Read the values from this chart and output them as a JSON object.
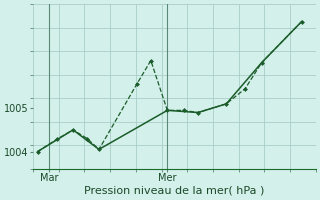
{
  "xlabel": "Pression niveau de la mer( hPa )",
  "background_color": "#d4f0ea",
  "grid_color": "#aacfc8",
  "line_color": "#1a5c2a",
  "vline_color": "#5a8878",
  "x_tick_labels": [
    "Mar",
    "Mer"
  ],
  "x_tick_positions": [
    0.5,
    5.5
  ],
  "yticks": [
    1004,
    1005
  ],
  "ylim": [
    1003.6,
    1007.4
  ],
  "xlim": [
    -0.2,
    11.8
  ],
  "num_xticks": 12,
  "num_yticks": 8,
  "series1_x": [
    0,
    0.8,
    1.5,
    2.1,
    2.6,
    4.2,
    4.8,
    5.5,
    6.2,
    6.8,
    8.0,
    8.8,
    9.5,
    11.2
  ],
  "series1_y": [
    1004.0,
    1004.28,
    1004.5,
    1004.3,
    1004.05,
    1005.55,
    1006.1,
    1004.95,
    1004.95,
    1004.9,
    1005.1,
    1005.45,
    1006.05,
    1007.0
  ],
  "series2_x": [
    0,
    1.5,
    2.6,
    5.5,
    6.8,
    8.0,
    9.5,
    11.2
  ],
  "series2_y": [
    1004.0,
    1004.5,
    1004.05,
    1004.95,
    1004.9,
    1005.1,
    1006.05,
    1007.0
  ],
  "vline_positions": [
    0.5,
    5.5
  ],
  "ylabel_fontsize": 7,
  "xlabel_fontsize": 8,
  "tick_fontsize": 7
}
